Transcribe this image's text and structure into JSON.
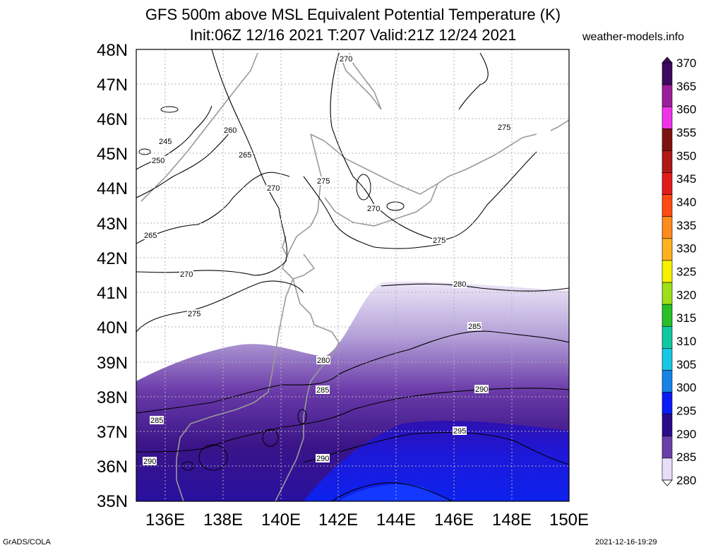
{
  "title": {
    "line1": "GFS 500m above MSL Equivalent Potential Temperature (K)",
    "line2": "Init:06Z 12/16 2021 T:207 Valid:21Z 12/24 2021"
  },
  "site": "weather-models.info",
  "footer": {
    "left": "GrADS/COLA",
    "right": "2021-12-16-19:29"
  },
  "map": {
    "lat_labels": [
      "48N",
      "47N",
      "46N",
      "45N",
      "44N",
      "43N",
      "42N",
      "41N",
      "40N",
      "39N",
      "38N",
      "37N",
      "36N",
      "35N"
    ],
    "lon_labels": [
      "136E",
      "138E",
      "140E",
      "142E",
      "144E",
      "146E",
      "148E",
      "150E"
    ],
    "contour_labels": [
      "270",
      "275",
      "245",
      "250",
      "260",
      "265",
      "270",
      "275",
      "270",
      "265",
      "275",
      "270",
      "280",
      "275",
      "285",
      "280",
      "285",
      "290",
      "285",
      "295",
      "290",
      "290"
    ],
    "grid": true
  },
  "colorbar": {
    "labels": [
      "370",
      "365",
      "360",
      "355",
      "350",
      "345",
      "340",
      "335",
      "330",
      "325",
      "320",
      "315",
      "310",
      "305",
      "300",
      "295",
      "290",
      "285",
      "280"
    ],
    "colors": [
      "#3b0a5f",
      "#9b1f9a",
      "#ee34e8",
      "#7e1212",
      "#b01818",
      "#e21a1a",
      "#ff4a12",
      "#ff8a1e",
      "#ffb21e",
      "#f7f000",
      "#9be018",
      "#27c027",
      "#10c8a0",
      "#16c8e2",
      "#1683e8",
      "#0b1cf6",
      "#2a0b8c",
      "#6a3fa8",
      "#e8defa"
    ]
  }
}
